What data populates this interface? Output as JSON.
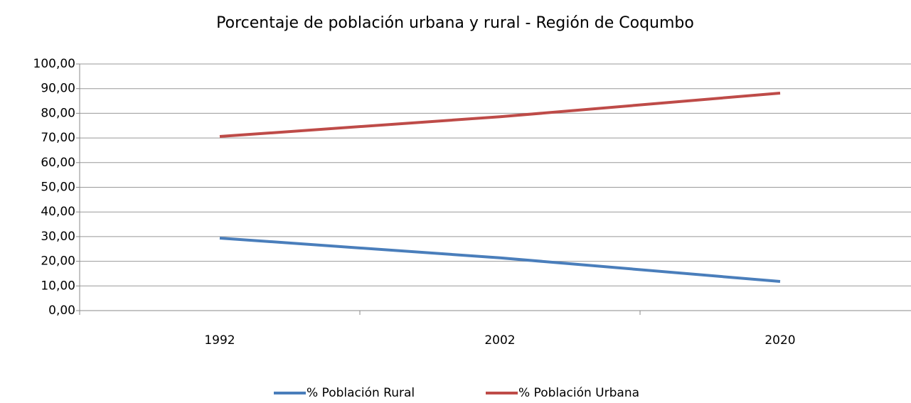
{
  "chart_data": {
    "type": "line",
    "title": "Porcentaje de población urbana y rural - Región de Coqumbo",
    "categories": [
      "1992",
      "2002",
      "2020"
    ],
    "series": [
      {
        "name": "% Población Rural",
        "color": "#4a7ebb",
        "values": [
          29.4,
          21.4,
          11.8
        ]
      },
      {
        "name": "% Población Urbana",
        "color": "#be4b48",
        "values": [
          70.6,
          78.6,
          88.2
        ]
      }
    ],
    "ylim": [
      0,
      100
    ],
    "yticks": [
      {
        "value": 0,
        "label": "0,00"
      },
      {
        "value": 10,
        "label": "10,00"
      },
      {
        "value": 20,
        "label": "20,00"
      },
      {
        "value": 30,
        "label": "30,00"
      },
      {
        "value": 40,
        "label": "40,00"
      },
      {
        "value": 50,
        "label": "50,00"
      },
      {
        "value": 60,
        "label": "60,00"
      },
      {
        "value": 70,
        "label": "70,00"
      },
      {
        "value": 80,
        "label": "80,00"
      },
      {
        "value": 90,
        "label": "90,00"
      },
      {
        "value": 100,
        "label": "100,00"
      }
    ],
    "grid": true,
    "legend": "bottom"
  }
}
